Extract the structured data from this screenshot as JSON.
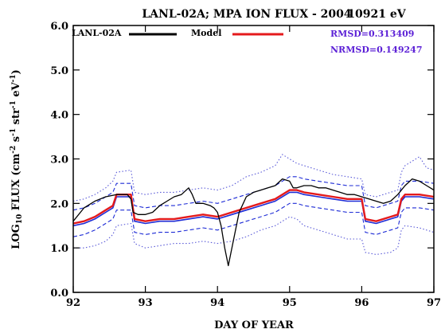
{
  "chart_data": {
    "type": "line",
    "title": {
      "left": "LANL-02A; MPA ION FLUX -  2004",
      "right": "10921 eV"
    },
    "xlabel": "DAY OF YEAR",
    "ylabel": {
      "prefix": "LOG",
      "prefix_sub": "10",
      "main": " FLUX (cm",
      "e1": "-2",
      "p2": " s",
      "e2": "-1",
      "p3": " str",
      "e3": "-1",
      "p4": " eV",
      "e4": "-1",
      "p5": ")"
    },
    "xlim": [
      92,
      97
    ],
    "ylim": [
      0,
      6
    ],
    "xticks": [
      92,
      93,
      94,
      95,
      96,
      97
    ],
    "xtick_labels": [
      "92",
      "93",
      "94",
      "95",
      "96",
      "97"
    ],
    "yticks": [
      0,
      1,
      2,
      3,
      4,
      5,
      6
    ],
    "ytick_labels": [
      "0.0",
      "1.0",
      "2.0",
      "3.0",
      "4.0",
      "5.0",
      "6.0"
    ],
    "legend": {
      "position": "top",
      "entries": [
        {
          "label": "LANL-02A",
          "color": "#000000"
        },
        {
          "label": "Model",
          "color": "#e41a1c"
        }
      ]
    },
    "stats": {
      "color": "#5b1fd6",
      "rmsd": "RMSD=0.313409",
      "nrmsd": "NRMSD=0.149247"
    },
    "series": [
      {
        "name": "LANL-02A",
        "color": "#000000",
        "x": [
          92.0,
          92.15,
          92.3,
          92.45,
          92.6,
          92.75,
          92.8,
          92.83,
          92.9,
          93.0,
          93.1,
          93.2,
          93.3,
          93.4,
          93.5,
          93.6,
          93.65,
          93.7,
          93.8,
          93.9,
          93.95,
          94.0,
          94.05,
          94.1,
          94.15,
          94.2,
          94.3,
          94.4,
          94.5,
          94.6,
          94.7,
          94.8,
          94.9,
          95.0,
          95.05,
          95.1,
          95.2,
          95.3,
          95.4,
          95.5,
          95.6,
          95.7,
          95.8,
          95.9,
          96.0,
          96.1,
          96.2,
          96.3,
          96.4,
          96.5,
          96.6,
          96.7,
          96.8,
          96.9,
          97.0
        ],
        "y": [
          1.6,
          1.9,
          2.05,
          2.15,
          2.2,
          2.2,
          2.1,
          1.8,
          1.75,
          1.75,
          1.8,
          1.95,
          2.05,
          2.15,
          2.2,
          2.35,
          2.2,
          2.0,
          2.0,
          1.95,
          1.9,
          1.8,
          1.5,
          1.0,
          0.6,
          1.0,
          1.8,
          2.15,
          2.25,
          2.3,
          2.35,
          2.4,
          2.55,
          2.5,
          2.35,
          2.35,
          2.4,
          2.4,
          2.35,
          2.35,
          2.3,
          2.25,
          2.2,
          2.2,
          2.15,
          2.1,
          2.05,
          2.0,
          2.05,
          2.2,
          2.4,
          2.55,
          2.5,
          2.4,
          2.3
        ]
      },
      {
        "name": "Model",
        "color": "#e41a1c",
        "x": [
          92.0,
          92.15,
          92.3,
          92.45,
          92.55,
          92.6,
          92.8,
          92.85,
          93.0,
          93.2,
          93.4,
          93.6,
          93.8,
          94.0,
          94.2,
          94.4,
          94.6,
          94.8,
          95.0,
          95.1,
          95.2,
          95.4,
          95.6,
          95.8,
          96.0,
          96.05,
          96.2,
          96.4,
          96.5,
          96.55,
          96.6,
          96.8,
          97.0
        ],
        "y": [
          1.55,
          1.6,
          1.7,
          1.85,
          1.95,
          2.2,
          2.2,
          1.65,
          1.6,
          1.65,
          1.65,
          1.7,
          1.75,
          1.7,
          1.8,
          1.9,
          2.0,
          2.1,
          2.3,
          2.3,
          2.25,
          2.2,
          2.15,
          2.1,
          2.1,
          1.65,
          1.6,
          1.7,
          1.75,
          2.1,
          2.2,
          2.2,
          2.15
        ]
      },
      {
        "name": "",
        "color": "#1d2bd6",
        "style": "solid",
        "x": [
          92.0,
          92.15,
          92.3,
          92.45,
          92.55,
          92.6,
          92.8,
          92.85,
          93.0,
          93.2,
          93.4,
          93.6,
          93.8,
          94.0,
          94.2,
          94.4,
          94.6,
          94.8,
          95.0,
          95.1,
          95.2,
          95.4,
          95.6,
          95.8,
          96.0,
          96.05,
          96.2,
          96.4,
          96.5,
          96.55,
          96.6,
          96.8,
          97.0
        ],
        "y": [
          1.5,
          1.55,
          1.65,
          1.8,
          1.9,
          2.15,
          2.15,
          1.6,
          1.55,
          1.6,
          1.6,
          1.65,
          1.7,
          1.65,
          1.75,
          1.85,
          1.95,
          2.05,
          2.25,
          2.25,
          2.2,
          2.15,
          2.1,
          2.05,
          2.05,
          1.6,
          1.55,
          1.65,
          1.7,
          2.05,
          2.15,
          2.15,
          2.1
        ]
      },
      {
        "name": "",
        "color": "#1d2bd6",
        "style": "dashed",
        "x": [
          92.0,
          92.15,
          92.3,
          92.45,
          92.55,
          92.6,
          92.8,
          92.85,
          93.0,
          93.2,
          93.4,
          93.6,
          93.8,
          94.0,
          94.2,
          94.4,
          94.6,
          94.8,
          95.0,
          95.1,
          95.2,
          95.4,
          95.6,
          95.8,
          96.0,
          96.05,
          96.2,
          96.4,
          96.5,
          96.55,
          96.6,
          96.8,
          97.0
        ],
        "y": [
          1.85,
          1.9,
          2.0,
          2.15,
          2.25,
          2.45,
          2.45,
          1.95,
          1.9,
          1.95,
          1.95,
          2.0,
          2.05,
          2.0,
          2.1,
          2.2,
          2.3,
          2.4,
          2.6,
          2.6,
          2.55,
          2.5,
          2.45,
          2.4,
          2.4,
          1.95,
          1.9,
          2.0,
          2.05,
          2.4,
          2.5,
          2.5,
          2.45
        ]
      },
      {
        "name": "",
        "color": "#1d2bd6",
        "style": "dashed",
        "x": [
          92.0,
          92.15,
          92.3,
          92.45,
          92.55,
          92.6,
          92.8,
          92.85,
          93.0,
          93.2,
          93.4,
          93.6,
          93.8,
          94.0,
          94.2,
          94.4,
          94.6,
          94.8,
          95.0,
          95.1,
          95.2,
          95.4,
          95.6,
          95.8,
          96.0,
          96.05,
          96.2,
          96.4,
          96.5,
          96.55,
          96.6,
          96.8,
          97.0
        ],
        "y": [
          1.25,
          1.3,
          1.4,
          1.55,
          1.65,
          1.85,
          1.85,
          1.35,
          1.3,
          1.35,
          1.35,
          1.4,
          1.45,
          1.4,
          1.5,
          1.6,
          1.7,
          1.8,
          2.0,
          2.0,
          1.95,
          1.9,
          1.85,
          1.8,
          1.8,
          1.35,
          1.3,
          1.4,
          1.45,
          1.8,
          1.9,
          1.9,
          1.85
        ]
      },
      {
        "name": "",
        "color": "#5a5ad8",
        "style": "dotted",
        "x": [
          92.0,
          92.15,
          92.3,
          92.45,
          92.55,
          92.6,
          92.8,
          92.85,
          93.0,
          93.2,
          93.4,
          93.6,
          93.8,
          94.0,
          94.2,
          94.4,
          94.6,
          94.8,
          94.9,
          95.0,
          95.1,
          95.2,
          95.4,
          95.6,
          95.8,
          96.0,
          96.05,
          96.2,
          96.4,
          96.5,
          96.55,
          96.6,
          96.8,
          96.9,
          97.0
        ],
        "y": [
          2.05,
          2.1,
          2.2,
          2.35,
          2.5,
          2.7,
          2.75,
          2.25,
          2.2,
          2.25,
          2.25,
          2.3,
          2.35,
          2.3,
          2.4,
          2.6,
          2.7,
          2.85,
          3.1,
          3.0,
          2.9,
          2.85,
          2.75,
          2.65,
          2.6,
          2.55,
          2.2,
          2.15,
          2.25,
          2.3,
          2.7,
          2.85,
          3.05,
          2.8,
          2.75
        ]
      },
      {
        "name": "",
        "color": "#5a5ad8",
        "style": "dotted",
        "x": [
          92.0,
          92.15,
          92.3,
          92.45,
          92.55,
          92.6,
          92.8,
          92.85,
          93.0,
          93.2,
          93.4,
          93.6,
          93.8,
          94.0,
          94.2,
          94.4,
          94.6,
          94.8,
          95.0,
          95.1,
          95.2,
          95.4,
          95.6,
          95.8,
          96.0,
          96.05,
          96.2,
          96.4,
          96.5,
          96.55,
          96.6,
          96.8,
          97.0
        ],
        "y": [
          1.0,
          1.0,
          1.05,
          1.15,
          1.3,
          1.5,
          1.55,
          1.1,
          1.0,
          1.05,
          1.1,
          1.1,
          1.15,
          1.1,
          1.15,
          1.25,
          1.4,
          1.5,
          1.7,
          1.65,
          1.5,
          1.4,
          1.3,
          1.2,
          1.2,
          0.9,
          0.85,
          0.9,
          1.0,
          1.4,
          1.5,
          1.45,
          1.35
        ]
      }
    ]
  }
}
